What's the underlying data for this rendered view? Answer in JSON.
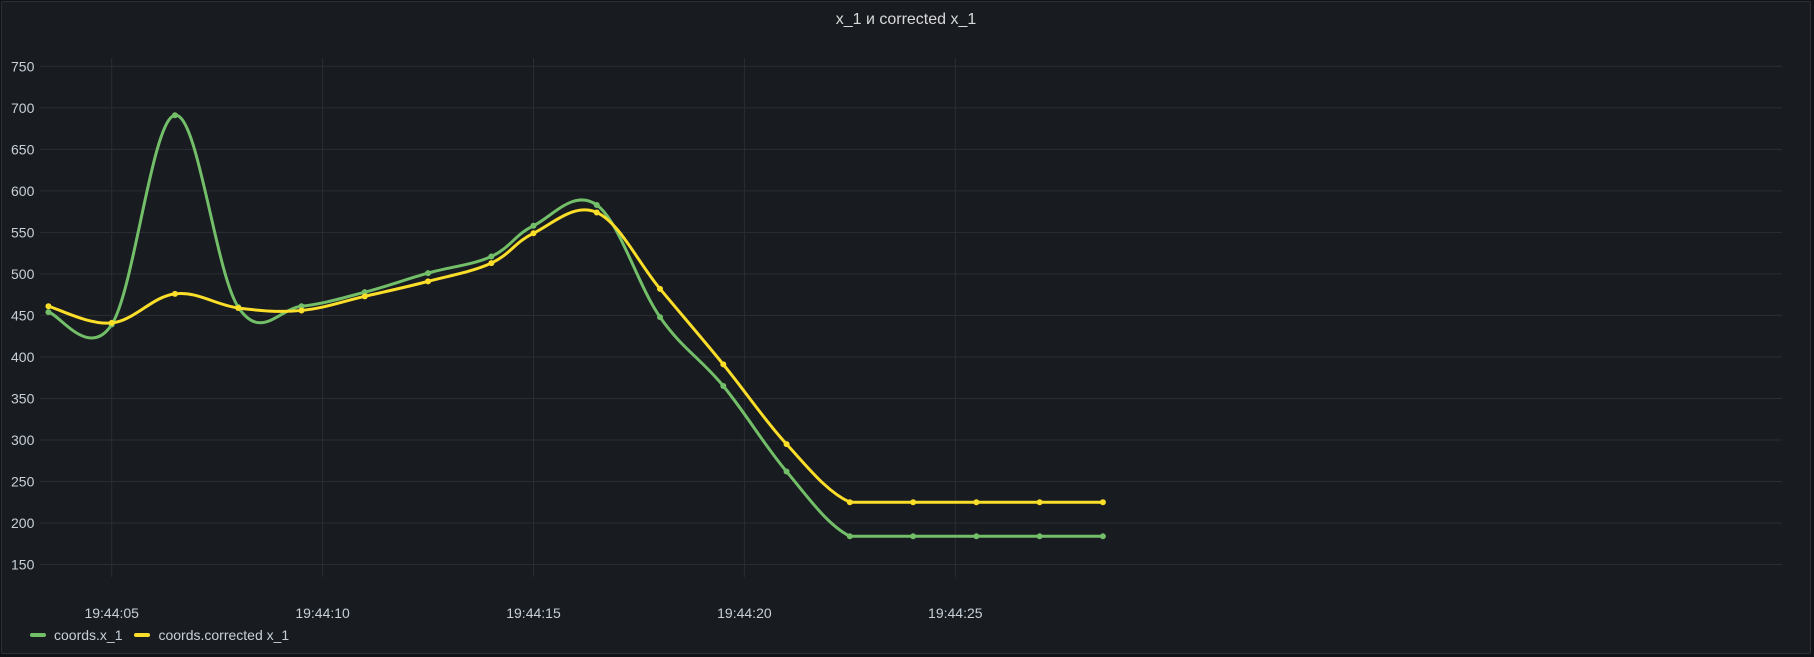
{
  "panel": {
    "title": "x_1 и corrected x_1"
  },
  "colors": {
    "background": "#181b1f",
    "grid": "#2a2e33",
    "green": "#73bf69",
    "yellow": "#fade2a"
  },
  "chart_data": {
    "type": "line",
    "title": "x_1 и corrected x_1",
    "xlabel": "",
    "ylabel": "",
    "ylim": [
      135,
      760
    ],
    "xlim": [
      "19:44:03.3",
      "19:44:44.6"
    ],
    "y_ticks": [
      150,
      200,
      250,
      300,
      350,
      400,
      450,
      500,
      550,
      600,
      650,
      700,
      750
    ],
    "x_ticks": [
      "19:44:05",
      "19:44:10",
      "19:44:15",
      "19:44:20",
      "19:44:25",
      "19:44"
    ],
    "grid": true,
    "legend_position": "bottom-left",
    "x": [
      "19:44:03.5",
      "19:44:05.0",
      "19:44:06.5",
      "19:44:08.0",
      "19:44:09.5",
      "19:44:11.0",
      "19:44:12.5",
      "19:44:14.0",
      "19:44:15.0",
      "19:44:16.5",
      "19:44:18.0",
      "19:44:19.5",
      "19:44:21.0",
      "19:44:22.5",
      "19:44:24.0",
      "19:44:25.5",
      "19:44:27.0",
      "19:44:28.5"
    ],
    "series": [
      {
        "name": "coords.x_1",
        "color": "#73bf69",
        "values": [
          454,
          439,
          691,
          460,
          461,
          478,
          501,
          521,
          558,
          583,
          448,
          365,
          262,
          184,
          184,
          184,
          184,
          184
        ]
      },
      {
        "name": "coords.corrected x_1",
        "color": "#fade2a",
        "values": [
          461,
          441,
          476,
          459,
          456,
          473,
          491,
          513,
          549,
          574,
          482,
          391,
          295,
          225,
          225,
          225,
          225,
          225
        ]
      }
    ]
  }
}
